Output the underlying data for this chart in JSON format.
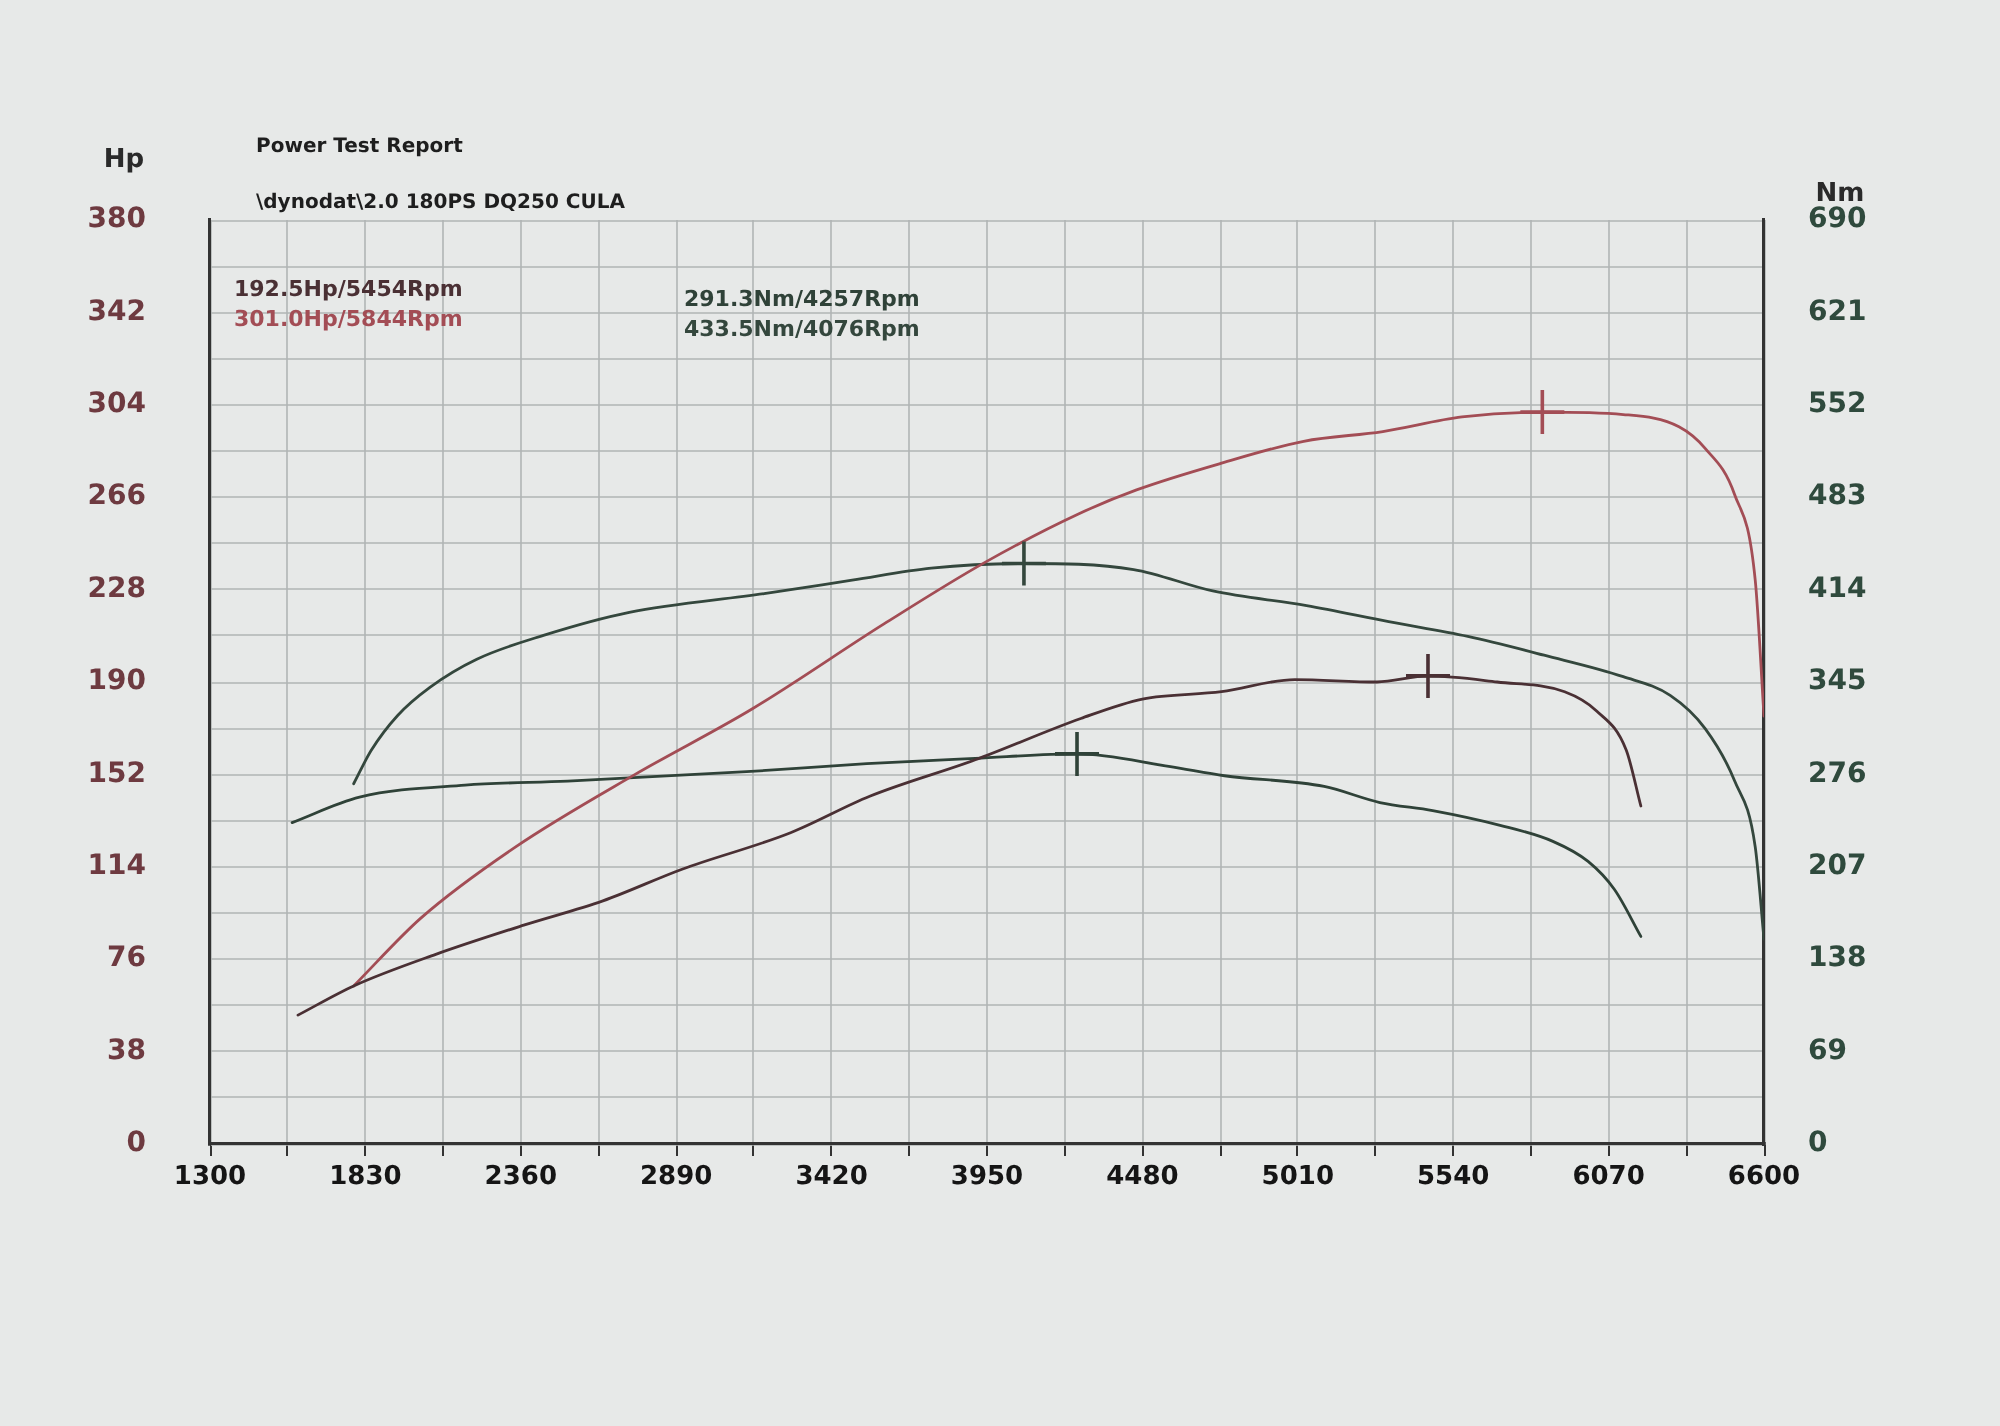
{
  "chart_data": {
    "type": "line",
    "title": "Power Test Report",
    "subtitle": "\\dynodat\\2.0 180PS DQ250 CULA",
    "ylabel": "Hp",
    "y2label": "Nm",
    "annotations": [
      "192.5Hp/5454Rpm",
      "301.0Hp/5844Rpm",
      "291.3Nm/4257Rpm",
      "433.5Nm/4076Rpm"
    ],
    "xlim": [
      1300,
      6600
    ],
    "xticks": [
      1300,
      {
        "value": 1565,
        "label": null
      },
      1830,
      {
        "value": 2095,
        "label": null
      },
      2360,
      {
        "value": 2625,
        "label": null
      },
      2890,
      {
        "value": 3155,
        "label": null
      },
      3420,
      {
        "value": 3685,
        "label": null
      },
      3950,
      {
        "value": 4215,
        "label": null
      },
      4480,
      {
        "value": 4745,
        "label": null
      },
      5010,
      {
        "value": 5275,
        "label": null
      },
      5540,
      {
        "value": 5805,
        "label": null
      },
      6070,
      {
        "value": 6335,
        "label": null
      },
      6600
    ],
    "ylim": [
      0,
      380
    ],
    "yticks": [
      0,
      {
        "value": 19,
        "label": null
      },
      38,
      {
        "value": 57,
        "label": null
      },
      76,
      {
        "value": 95,
        "label": null
      },
      114,
      {
        "value": 133,
        "label": null
      },
      152,
      {
        "value": 171,
        "label": null
      },
      190,
      {
        "value": 209,
        "label": null
      },
      228,
      {
        "value": 247,
        "label": null
      },
      266,
      {
        "value": 285,
        "label": null
      },
      304,
      {
        "value": 323,
        "label": null
      },
      342,
      {
        "value": 361,
        "label": null
      },
      380
    ],
    "y2lim": [
      0,
      690
    ],
    "y2ticks": [
      0,
      69,
      138,
      207,
      276,
      345,
      414,
      483,
      552,
      621,
      690
    ],
    "grid": true,
    "line_style": "solid",
    "series": [
      {
        "color": "#4a3034",
        "x": [
          1600,
          1790,
          2070,
          2370,
          2640,
          2910,
          3280,
          3550,
          3910,
          4270,
          4480,
          4750,
          5000,
          5280,
          5454,
          5690,
          5920,
          6030,
          6130,
          6180
        ],
        "values": [
          53,
          65,
          78,
          90,
          100,
          113,
          128,
          143,
          158,
          175,
          183,
          186,
          191,
          190,
          192.5,
          190,
          186,
          178,
          162,
          139
        ]
      },
      {
        "color": "#a34d55",
        "x": [
          1790,
          2020,
          2340,
          2750,
          3150,
          3600,
          3940,
          4260,
          4460,
          4750,
          5030,
          5300,
          5570,
          5844,
          6120,
          6310,
          6400,
          6500,
          6570,
          6600
        ],
        "values": [
          65,
          93,
          122,
          152,
          179,
          214,
          239,
          259,
          269,
          280,
          289,
          293,
          299,
          301.0,
          300,
          295,
          286,
          267,
          232,
          176
        ]
      },
      {
        "color": "#2f4238",
        "axis": "y2",
        "x": [
          1580,
          1810,
          2170,
          2520,
          3130,
          3540,
          3910,
          4257,
          4570,
          4760,
          5100,
          5290,
          5470,
          5700,
          5880,
          6000,
          6090,
          6180
        ],
        "values": [
          240,
          259,
          268,
          271,
          278,
          284,
          288,
          291.3,
          282,
          275,
          267,
          255,
          249,
          238,
          226,
          211,
          190,
          155
        ]
      },
      {
        "color": "#34473d",
        "axis": "y2",
        "x": [
          1790,
          1850,
          1940,
          2050,
          2210,
          2440,
          2730,
          3190,
          3490,
          3760,
          4076,
          4450,
          4720,
          5040,
          5320,
          5590,
          5850,
          6120,
          6280,
          6400,
          6500,
          6570,
          6600
        ],
        "values": [
          269,
          294,
          320,
          341,
          362,
          380,
          397,
          411,
          421,
          430,
          433.5,
          429,
          413,
          402,
          390,
          379,
          365,
          349,
          335,
          310,
          271,
          222,
          153
        ]
      },
      {
        "type": "scatter",
        "marker": "cross",
        "x": [
          5454,
          5844
        ],
        "values": [
          192.5,
          301.0
        ],
        "colors": [
          "#4a3034",
          "#a34d55"
        ]
      },
      {
        "type": "scatter",
        "marker": "cross",
        "axis": "y2",
        "x": [
          4257,
          4076
        ],
        "values": [
          291.3,
          433.5
        ],
        "colors": [
          "#2f4238",
          "#34473d"
        ]
      }
    ]
  }
}
